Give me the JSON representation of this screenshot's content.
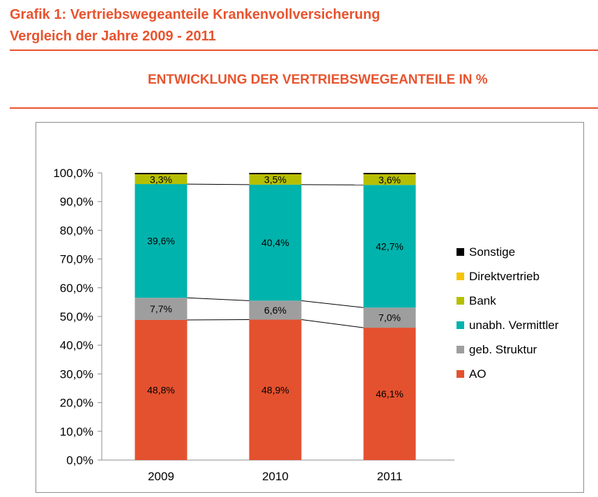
{
  "header": {
    "title_line1": "Grafik 1: Vertriebswegeanteile Krankenvollversicherung",
    "title_line2": "Vergleich der Jahre 2009 - 2011",
    "section_heading": "ENTWICKLUNG DER VERTRIEBSWEGEANTEILE IN %"
  },
  "colors": {
    "accent": "#E8542F",
    "AO": "#E4512F",
    "geb_Struktur": "#9E9E9E",
    "unabh_Vermittler": "#00B3AC",
    "Bank": "#B5BF00",
    "Direktvertrieb": "#F5C400",
    "Sonstige": "#000000"
  },
  "chart_data": {
    "type": "bar",
    "stacked": true,
    "categories": [
      "2009",
      "2010",
      "2011"
    ],
    "ylim": [
      0,
      100
    ],
    "yticks": [
      "0,0%",
      "10,0%",
      "20,0%",
      "30,0%",
      "40,0%",
      "50,0%",
      "60,0%",
      "70,0%",
      "80,0%",
      "90,0%",
      "100,0%"
    ],
    "series": [
      {
        "name": "AO",
        "values": [
          48.8,
          48.9,
          46.1
        ],
        "labels": [
          "48,8%",
          "48,9%",
          "46,1%"
        ],
        "color": "#E4512F"
      },
      {
        "name": "geb. Struktur",
        "values": [
          7.7,
          6.6,
          7.0
        ],
        "labels": [
          "7,7%",
          "6,6%",
          "7,0%"
        ],
        "color": "#9E9E9E"
      },
      {
        "name": "unabh. Vermittler",
        "values": [
          39.6,
          40.4,
          42.7
        ],
        "labels": [
          "39,6%",
          "40,4%",
          "42,7%"
        ],
        "color": "#00B3AC"
      },
      {
        "name": "Bank",
        "values": [
          3.3,
          3.5,
          3.6
        ],
        "labels": [
          "3,3%",
          "3,5%",
          "3,6%"
        ],
        "color": "#B5BF00"
      },
      {
        "name": "Direktvertrieb",
        "values": [
          0.1,
          0.1,
          0.1
        ],
        "labels": [
          "",
          "",
          ""
        ],
        "color": "#F5C400"
      },
      {
        "name": "Sonstige",
        "values": [
          0.5,
          0.5,
          0.5
        ],
        "labels": [
          "",
          "",
          ""
        ],
        "color": "#000000"
      }
    ],
    "legend_order": [
      "Sonstige",
      "Direktvertrieb",
      "Bank",
      "unabh. Vermittler",
      "geb. Struktur",
      "AO"
    ],
    "legend_position": "right",
    "series_lines": true,
    "grid": false
  }
}
